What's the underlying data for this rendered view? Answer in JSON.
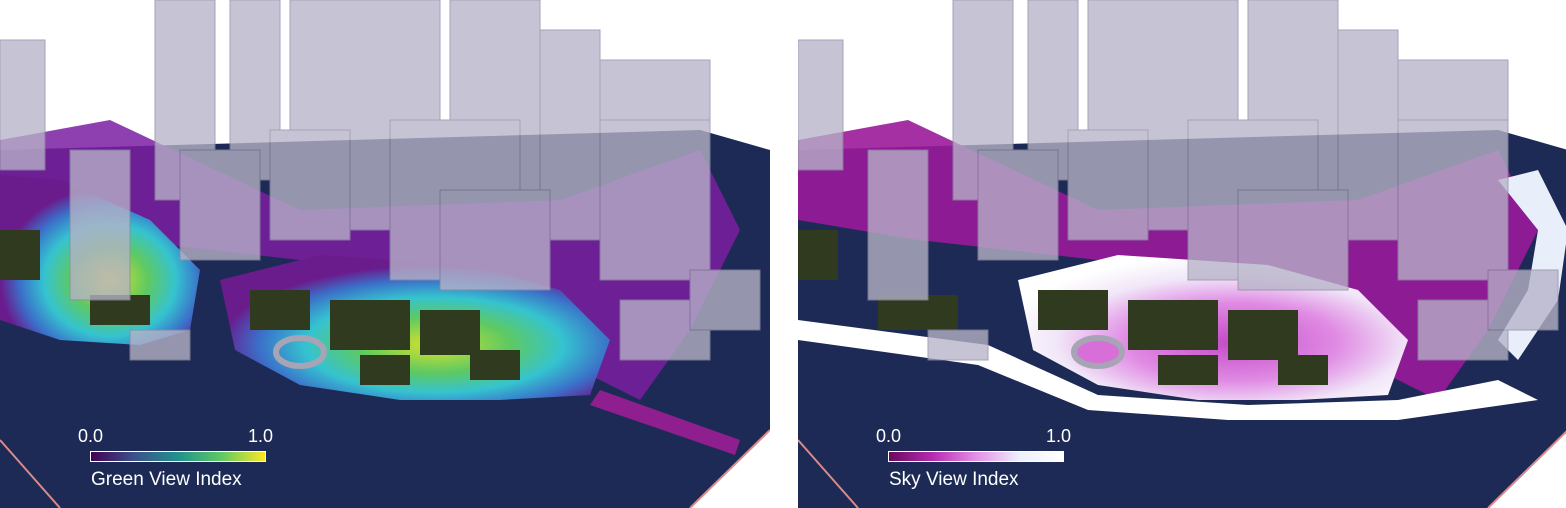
{
  "panels": [
    {
      "legend": {
        "min": "0.0",
        "max": "1.0",
        "title": "Green View Index",
        "colormap": [
          "#440154",
          "#3b528b",
          "#21918c",
          "#5ec962",
          "#fde725"
        ]
      }
    },
    {
      "legend": {
        "min": "0.0",
        "max": "1.0",
        "title": "Sky View Index",
        "colormap": [
          "#6a0a5e",
          "#b52bb0",
          "#e48fe6",
          "#eef0fb",
          "#ffffff"
        ]
      }
    }
  ],
  "colors": {
    "ground": "#1c2a55",
    "ground_edge": "#d98a8a",
    "trees": "#2f3a1e",
    "buildings": "#b7b3c8"
  }
}
